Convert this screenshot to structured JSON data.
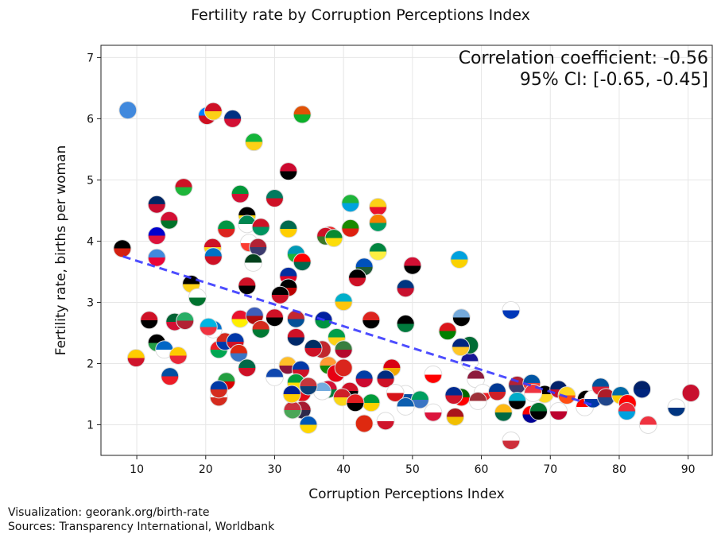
{
  "chart_data": {
    "type": "scatter",
    "title": "Fertility rate by Corruption Perceptions Index",
    "xlabel": "Corruption Perceptions Index",
    "ylabel": "Fertility rate, births per woman",
    "xlim": [
      4.8,
      93.5
    ],
    "ylim": [
      0.5,
      7.2
    ],
    "xticks": [
      10,
      20,
      30,
      40,
      50,
      60,
      70,
      80,
      90
    ],
    "yticks": [
      1,
      2,
      3,
      4,
      5,
      6,
      7
    ],
    "grid": true,
    "marker": "country-flag",
    "annotation": [
      "Correlation coefficient: -0.56",
      "95% CI: [-0.65, -0.45]"
    ],
    "trendline": {
      "x": [
        8,
        76.2
      ],
      "y": [
        3.75,
        1.32
      ],
      "color": "#3b3bff",
      "style": "dashed"
    },
    "points": [
      [
        8.7,
        6.14,
        "#4189dd",
        "#4189dd"
      ],
      [
        20.2,
        6.05,
        "#007fff",
        "#ce1021"
      ],
      [
        21.1,
        6.12,
        "#ce1126",
        "#fcd116"
      ],
      [
        23.9,
        6.0,
        "#003082",
        "#d21034"
      ],
      [
        34,
        6.07,
        "#e05206",
        "#0db02b"
      ],
      [
        27,
        5.62,
        "#14b53a",
        "#fcd116"
      ],
      [
        32,
        5.14,
        "#cc092f",
        "#000000"
      ],
      [
        16.8,
        4.88,
        "#ce1126",
        "#1eb53a"
      ],
      [
        25,
        4.77,
        "#009739",
        "#d21034"
      ],
      [
        30,
        4.7,
        "#007a5e",
        "#ce1126"
      ],
      [
        41,
        4.62,
        "#1eb53a",
        "#00a3dd"
      ],
      [
        45,
        4.56,
        "#fcd116",
        "#e8112d"
      ],
      [
        12.9,
        4.6,
        "#002664",
        "#c60c30"
      ],
      [
        14.7,
        4.34,
        "#d21034",
        "#007229"
      ],
      [
        26,
        4.42,
        "#000000",
        "#fcdc04"
      ],
      [
        26,
        4.28,
        "#008751",
        "#ffffff"
      ],
      [
        23,
        4.2,
        "#009543",
        "#dc241f"
      ],
      [
        28,
        4.23,
        "#ce1126",
        "#009460"
      ],
      [
        32,
        4.2,
        "#006a4e",
        "#ffce00"
      ],
      [
        41,
        4.21,
        "#198a00",
        "#de2010"
      ],
      [
        45,
        4.3,
        "#f77f00",
        "#009e60"
      ],
      [
        38,
        4.1,
        "#ef2b2d",
        "#009e49"
      ],
      [
        7.9,
        3.88,
        "#000000",
        "#d32011"
      ],
      [
        12.9,
        4.09,
        "#0000cc",
        "#dc143c"
      ],
      [
        12.9,
        3.73,
        "#4189dd",
        "#ea0437"
      ],
      [
        21,
        3.9,
        "#ce1126",
        "#fcd116"
      ],
      [
        21.1,
        3.75,
        "#0072c6",
        "#ce1126"
      ],
      [
        26.3,
        3.97,
        "#ffffff",
        "#fc3d32"
      ],
      [
        27.6,
        3.9,
        "#b22234",
        "#3c3b6e"
      ],
      [
        26.9,
        3.65,
        "#01411c",
        "#ffffff"
      ],
      [
        37.4,
        4.08,
        "#ce1126",
        "#3a7728"
      ],
      [
        38.6,
        4.05,
        "#078930",
        "#fcdd09"
      ],
      [
        45,
        3.83,
        "#00853f",
        "#fdef42"
      ],
      [
        50,
        3.6,
        "#d21034",
        "#000000"
      ],
      [
        56.8,
        3.7,
        "#00a1de",
        "#fad201"
      ],
      [
        33.1,
        3.79,
        "#0099b5",
        "#1eb53a"
      ],
      [
        34,
        3.66,
        "#ff0000",
        "#006a4e"
      ],
      [
        43,
        3.58,
        "#0051ba",
        "#215b33"
      ],
      [
        42,
        3.4,
        "#000000",
        "#ce1126"
      ],
      [
        49,
        3.23,
        "#003580",
        "#c8102e"
      ],
      [
        32,
        3.43,
        "#032ea1",
        "#e00025"
      ],
      [
        32,
        3.24,
        "#000000",
        "#bb0000"
      ],
      [
        17.9,
        3.3,
        "#000000",
        "#fcd116"
      ],
      [
        26,
        3.27,
        "#ce1126",
        "#000000"
      ],
      [
        18.8,
        3.08,
        "#ffffff",
        "#00732f"
      ],
      [
        30.8,
        3.12,
        "#000000",
        "#ce1126"
      ],
      [
        40,
        3.01,
        "#00afca",
        "#fec50c"
      ],
      [
        64.3,
        2.87,
        "#ffffff",
        "#0038b8"
      ],
      [
        11.8,
        2.71,
        "#ce1126",
        "#000000"
      ],
      [
        12.9,
        2.34,
        "#000000",
        "#239e46"
      ],
      [
        9.9,
        2.09,
        "#ffcc00",
        "#cf142b"
      ],
      [
        14,
        2.23,
        "#0067c6",
        "#ffffff"
      ],
      [
        16,
        2.13,
        "#fecb00",
        "#ea2839"
      ],
      [
        14.8,
        1.79,
        "#024fa2",
        "#ed1c27"
      ],
      [
        15.5,
        2.68,
        "#006233",
        "#d21034"
      ],
      [
        17,
        2.7,
        "#28ae66",
        "#b22234"
      ],
      [
        21.9,
        2.23,
        "#ed1c24",
        "#00a651"
      ],
      [
        22.8,
        2.36,
        "#d52b1e",
        "#0038a8"
      ],
      [
        21.1,
        2.56,
        "#0073cf",
        "#ffffff"
      ],
      [
        20.4,
        2.6,
        "#00b5e2",
        "#ef3340"
      ],
      [
        23,
        1.71,
        "#239f40",
        "#da0000"
      ],
      [
        21.9,
        1.45,
        "#ffffff",
        "#d52b1e"
      ],
      [
        21.9,
        1.58,
        "#0039a6",
        "#d52b1e"
      ],
      [
        24.3,
        2.36,
        "#0038a8",
        "#ce1126"
      ],
      [
        24.8,
        2.17,
        "#de2910",
        "#3a75c4"
      ],
      [
        25,
        2.73,
        "#e8112d",
        "#ffef00"
      ],
      [
        27.1,
        2.78,
        "#3e5eb9",
        "#b10c0c"
      ],
      [
        30,
        2.75,
        "#ce1126",
        "#000000"
      ],
      [
        33.1,
        2.73,
        "#c4272f",
        "#015197"
      ],
      [
        28,
        2.56,
        "#d52b1e",
        "#007934"
      ],
      [
        33.1,
        2.43,
        "#ce1126",
        "#002868"
      ],
      [
        37.1,
        2.71,
        "#00209f",
        "#009543"
      ],
      [
        44,
        2.71,
        "#dc241f",
        "#000000"
      ],
      [
        49,
        2.65,
        "#000000",
        "#007a3d"
      ],
      [
        57.1,
        2.75,
        "#75aadb",
        "#000000"
      ],
      [
        55.1,
        2.53,
        "#db161b",
        "#008000"
      ],
      [
        39,
        2.43,
        "#009e49",
        "#fcd116"
      ],
      [
        40,
        2.23,
        "#377e3f",
        "#b40a2d"
      ],
      [
        36.9,
        2.23,
        "#c1272d",
        "#c1272d"
      ],
      [
        35.6,
        2.25,
        "#002d62",
        "#ce1126"
      ],
      [
        26,
        1.93,
        "#006847",
        "#ce1126"
      ],
      [
        31.9,
        1.97,
        "#ffbe29",
        "#8d153a"
      ],
      [
        30,
        1.78,
        "#0f47af",
        "#ffffff"
      ],
      [
        33.8,
        1.9,
        "#0038a8",
        "#ce1126"
      ],
      [
        37.8,
        1.97,
        "#ff9933",
        "#138808"
      ],
      [
        38.9,
        1.84,
        "#e70013",
        "#e70013"
      ],
      [
        40,
        1.93,
        "#da251d",
        "#da251d"
      ],
      [
        43,
        1.75,
        "#003da5",
        "#cc092f"
      ],
      [
        47,
        1.93,
        "#d90012",
        "#f2a800"
      ],
      [
        46.1,
        1.75,
        "#002b7f",
        "#ce1126"
      ],
      [
        53,
        1.82,
        "#ffffff",
        "#ff0000"
      ],
      [
        59.2,
        1.75,
        "#8d1b3d",
        "#ffffff"
      ],
      [
        34,
        1.52,
        "#e30a17",
        "#e30a17"
      ],
      [
        37.8,
        1.58,
        "#d21034",
        "#007e3a"
      ],
      [
        40.9,
        1.55,
        "#ce1126",
        "#000000"
      ],
      [
        49,
        1.5,
        "#ffffff",
        "#0b4ea2"
      ],
      [
        47.5,
        1.52,
        "#ffffff",
        "#d7141a"
      ],
      [
        39.8,
        1.45,
        "#ce2028",
        "#f9d616"
      ],
      [
        44,
        1.36,
        "#009b3a",
        "#fed100"
      ],
      [
        51.1,
        1.41,
        "#009e60",
        "#3a75c4"
      ],
      [
        49,
        1.3,
        "#0d5eaf",
        "#ffffff"
      ],
      [
        36.9,
        1.55,
        "#74acdf",
        "#ffffff"
      ],
      [
        34,
        1.24,
        "#a51931",
        "#2d2a4a"
      ],
      [
        32.6,
        1.24,
        "#c8313e",
        "#4aa657"
      ],
      [
        34.9,
        1.0,
        "#0057b7",
        "#ffd700"
      ],
      [
        43,
        1.02,
        "#de2910",
        "#de2910"
      ],
      [
        46.1,
        1.06,
        "#ffffff",
        "#cf142b"
      ],
      [
        53,
        1.2,
        "#ffffff",
        "#dc143c"
      ],
      [
        56.2,
        1.13,
        "#aa151b",
        "#f1bf00"
      ],
      [
        57.1,
        1.45,
        "#006600",
        "#ff0000"
      ],
      [
        56,
        1.48,
        "#002a8f",
        "#cf142b"
      ],
      [
        33.1,
        1.69,
        "#009c3b",
        "#ffdf00"
      ],
      [
        34.9,
        1.63,
        "#c6363c",
        "#0c4076"
      ],
      [
        41.7,
        1.36,
        "#e41e20",
        "#000000"
      ],
      [
        32.5,
        1.5,
        "#002395",
        "#fecb00"
      ],
      [
        58.3,
        2.04,
        "#171696",
        "#ffffff"
      ],
      [
        58.3,
        2.3,
        "#006c35",
        "#006c35"
      ],
      [
        57,
        2.27,
        "#00267f",
        "#ffc726"
      ],
      [
        60.2,
        1.52,
        "#ffffff",
        "#ed1c24"
      ],
      [
        62.3,
        1.54,
        "#003893",
        "#cf2027"
      ],
      [
        59.5,
        1.39,
        "#9e3039",
        "#ffffff"
      ],
      [
        65.2,
        1.65,
        "#b22234",
        "#3c3b6e"
      ],
      [
        67.3,
        1.68,
        "#0055a4",
        "#ef4135"
      ],
      [
        65.2,
        1.39,
        "#00abc9",
        "#000000"
      ],
      [
        63.2,
        1.2,
        "#fdb913",
        "#006a44"
      ],
      [
        67.2,
        1.17,
        "#fe0000",
        "#000095"
      ],
      [
        68.3,
        1.22,
        "#00732f",
        "#000000"
      ],
      [
        69.2,
        1.5,
        "#000000",
        "#fdda24"
      ],
      [
        71.2,
        1.58,
        "#012169",
        "#c8102e"
      ],
      [
        72.4,
        1.48,
        "#ffd520",
        "#ff4e12"
      ],
      [
        71.2,
        1.22,
        "#ffffff",
        "#bc002d"
      ],
      [
        75.2,
        1.42,
        "#000000",
        "#dd0000"
      ],
      [
        75,
        1.29,
        "#ff0000",
        "#ffffff"
      ],
      [
        76.2,
        1.42,
        "#ffffff",
        "#0038a8"
      ],
      [
        77.3,
        1.62,
        "#02529c",
        "#dc1e35"
      ],
      [
        78.1,
        1.45,
        "#ae1c28",
        "#21468b"
      ],
      [
        80.2,
        1.48,
        "#006aa7",
        "#fecc00"
      ],
      [
        81.2,
        1.35,
        "#ff0000",
        "#ff0000"
      ],
      [
        81.1,
        1.22,
        "#ed2939",
        "#00a1de"
      ],
      [
        83.3,
        1.58,
        "#012169",
        "#00247d"
      ],
      [
        88.3,
        1.28,
        "#ffffff",
        "#003580"
      ],
      [
        90.4,
        1.52,
        "#c8102e",
        "#c8102e"
      ],
      [
        84.2,
        1.0,
        "#ef3340",
        "#ffffff"
      ],
      [
        64.3,
        0.74,
        "#ffffff",
        "#cd2e3a"
      ],
      [
        67.5,
        1.52,
        "#ef3340",
        "#ffffff"
      ]
    ]
  },
  "footer": {
    "visualization": "Visualization: georank.org/birth-rate",
    "sources": "Sources: Transparency International, Worldbank"
  }
}
